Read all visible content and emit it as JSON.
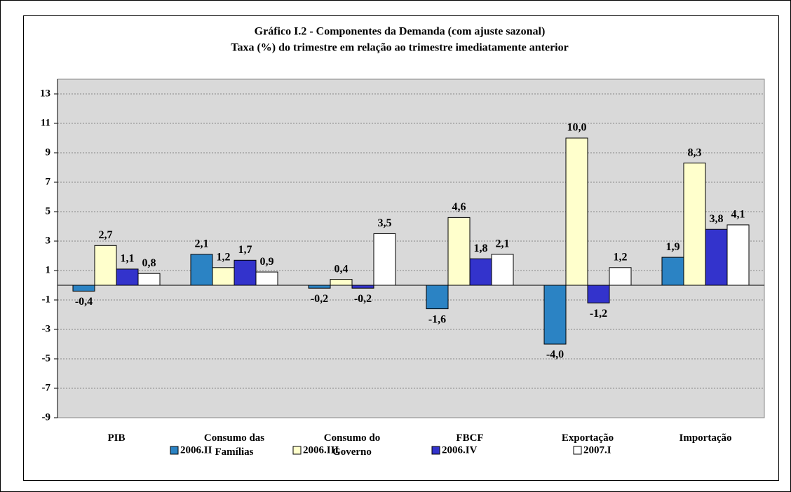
{
  "chart_data": {
    "type": "bar",
    "title": "Gráfico I.2 - Componentes da Demanda (com ajuste sazonal)",
    "subtitle": "Taxa (%) do trimestre em relação ao trimestre imediatamente anterior",
    "categories": [
      "PIB",
      "Consumo das Famílias",
      "Consumo do Governo",
      "FBCF",
      "Exportação",
      "Importação"
    ],
    "series": [
      {
        "name": "2006.II",
        "color": "#2b83c4",
        "values": [
          -0.4,
          2.1,
          -0.2,
          -1.6,
          -4.0,
          1.9
        ],
        "value_labels": [
          "-0,4",
          "2,1",
          "-0,2",
          "-1,6",
          "-4,0",
          "1,9"
        ]
      },
      {
        "name": "2006.III",
        "color": "#ffffcc",
        "values": [
          2.7,
          1.2,
          0.4,
          4.6,
          10.0,
          8.3
        ],
        "value_labels": [
          "2,7",
          "1,2",
          "0,4",
          "4,6",
          "10,0",
          "8,3"
        ]
      },
      {
        "name": "2006.IV",
        "color": "#3333cc",
        "values": [
          1.1,
          1.7,
          -0.2,
          1.8,
          -1.2,
          3.8
        ],
        "value_labels": [
          "1,1",
          "1,7",
          "-0,2",
          "1,8",
          "-1,2",
          "3,8"
        ]
      },
      {
        "name": "2007.I",
        "color": "#ffffff",
        "values": [
          0.8,
          0.9,
          3.5,
          2.1,
          1.2,
          4.1
        ],
        "value_labels": [
          "0,8",
          "0,9",
          "3,5",
          "2,1",
          "1,2",
          "4,1"
        ]
      }
    ],
    "ylim": [
      -9,
      14
    ],
    "yticks": [
      -9,
      -7,
      -5,
      -3,
      -1,
      1,
      3,
      5,
      7,
      9,
      11,
      13
    ],
    "grid": true,
    "legend": "bottom"
  }
}
